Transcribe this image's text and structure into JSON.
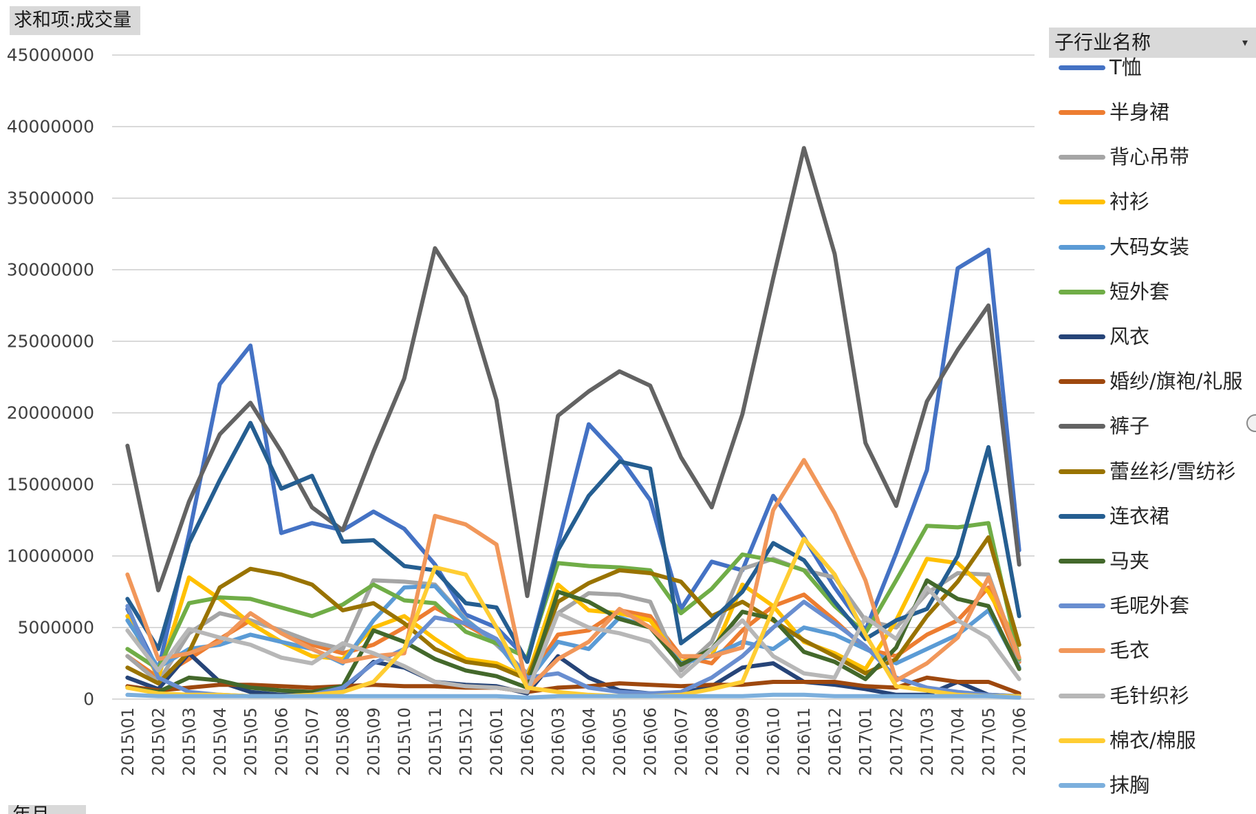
{
  "pivot_fields": {
    "value_field": "求和项:成交量",
    "axis_field": "年月"
  },
  "icons": {
    "legend_dropdown": "chevron-down-icon"
  },
  "chart_data": {
    "type": "line",
    "legend_title": "子行业名称",
    "legend_position": "right",
    "grid": "horizontal",
    "ylim": [
      0,
      45000000
    ],
    "yticks": [
      0,
      5000000,
      10000000,
      15000000,
      20000000,
      25000000,
      30000000,
      35000000,
      40000000,
      45000000
    ],
    "ytick_labels": [
      "0",
      "5000000",
      "10000000",
      "15000000",
      "20000000",
      "25000000",
      "30000000",
      "35000000",
      "40000000",
      "45000000"
    ],
    "categories": [
      "2015\\01",
      "2015\\02",
      "2015\\03",
      "2015\\04",
      "2015\\05",
      "2015\\06",
      "2015\\07",
      "2015\\08",
      "2015\\09",
      "2015\\10",
      "2015\\11",
      "2015\\12",
      "2016\\01",
      "2016\\02",
      "2016\\03",
      "2016\\04",
      "2016\\05",
      "2016\\06",
      "2016\\07",
      "2016\\08",
      "2016\\09",
      "2016\\10",
      "2016\\11",
      "2016\\12",
      "2017\\01",
      "2017\\02",
      "2017\\03",
      "2017\\04",
      "2017\\05",
      "2017\\06"
    ],
    "series": [
      {
        "name": "T恤",
        "color": "#4472C4",
        "values": [
          6300000,
          2000000,
          11500000,
          22000000,
          24700000,
          11600000,
          12300000,
          11800000,
          13100000,
          11900000,
          9400000,
          5900000,
          5000000,
          2800000,
          10800000,
          19200000,
          16900000,
          13900000,
          6300000,
          9600000,
          9000000,
          14200000,
          11300000,
          7800000,
          4800000,
          10200000,
          16000000,
          30100000,
          31400000,
          10400000
        ]
      },
      {
        "name": "半身裙",
        "color": "#ED7D31",
        "values": [
          3000000,
          1500000,
          2800000,
          4200000,
          5500000,
          4800000,
          3800000,
          3200000,
          3800000,
          5000000,
          6400000,
          5200000,
          4000000,
          1200000,
          4500000,
          4800000,
          6200000,
          5800000,
          3000000,
          2500000,
          4800000,
          6500000,
          7300000,
          5500000,
          3500000,
          3000000,
          4500000,
          5500000,
          7800000,
          2600000
        ]
      },
      {
        "name": "背心吊带",
        "color": "#A5A5A5",
        "values": [
          3000000,
          1200000,
          4600000,
          6000000,
          5500000,
          4800000,
          4000000,
          3500000,
          8300000,
          8200000,
          8000000,
          5600000,
          3800000,
          1800000,
          6000000,
          7400000,
          7300000,
          6800000,
          2000000,
          4000000,
          9100000,
          9800000,
          9000000,
          8500000,
          5500000,
          5000000,
          7400000,
          8800000,
          8700000,
          2700000
        ]
      },
      {
        "name": "衬衫",
        "color": "#FFC000",
        "values": [
          5800000,
          1500000,
          8500000,
          7000000,
          5300000,
          4000000,
          3000000,
          2800000,
          5000000,
          5800000,
          4200000,
          2800000,
          2500000,
          1500000,
          8000000,
          6200000,
          6000000,
          5500000,
          2600000,
          3000000,
          8000000,
          6500000,
          4000000,
          3200000,
          2100000,
          5500000,
          9800000,
          9500000,
          7500000,
          3800000
        ]
      },
      {
        "name": "大码女装",
        "color": "#5B9BD5",
        "values": [
          5500000,
          2200000,
          3500000,
          3800000,
          4500000,
          4000000,
          3500000,
          2500000,
          5500000,
          7800000,
          7900000,
          5500000,
          4000000,
          1200000,
          4000000,
          3500000,
          5700000,
          5000000,
          2500000,
          3000000,
          4000000,
          3500000,
          5000000,
          4500000,
          3500000,
          2500000,
          3500000,
          4500000,
          6200000,
          2200000
        ]
      },
      {
        "name": "短外套",
        "color": "#70AD47",
        "values": [
          3500000,
          2100000,
          6700000,
          7100000,
          7000000,
          6400000,
          5800000,
          6600000,
          8000000,
          6900000,
          6700000,
          4700000,
          3900000,
          2900000,
          9500000,
          9300000,
          9200000,
          9000000,
          6000000,
          7700000,
          10100000,
          9700000,
          9000000,
          6500000,
          4600000,
          8300000,
          12100000,
          12000000,
          12300000,
          2800000
        ]
      },
      {
        "name": "风衣",
        "color": "#264478",
        "values": [
          1500000,
          700000,
          3200000,
          1200000,
          500000,
          300000,
          300000,
          600000,
          2600000,
          2200000,
          1200000,
          1000000,
          900000,
          400000,
          3000000,
          1500000,
          600000,
          400000,
          400000,
          900000,
          2200000,
          2500000,
          1200000,
          1000000,
          700000,
          300000,
          300000,
          1200000,
          300000,
          200000
        ]
      },
      {
        "name": "婚纱/旗袍/礼服",
        "color": "#9E480E",
        "values": [
          900000,
          600000,
          800000,
          1000000,
          1000000,
          900000,
          800000,
          900000,
          1000000,
          900000,
          900000,
          800000,
          800000,
          500000,
          800000,
          900000,
          1100000,
          1000000,
          900000,
          1000000,
          1000000,
          1200000,
          1200000,
          1200000,
          900000,
          800000,
          1500000,
          1200000,
          1200000,
          400000
        ]
      },
      {
        "name": "裤子",
        "color": "#636363",
        "values": [
          17700000,
          7600000,
          13800000,
          18500000,
          20700000,
          17300000,
          13400000,
          11800000,
          17300000,
          22400000,
          31500000,
          28100000,
          20900000,
          7200000,
          19800000,
          21500000,
          22900000,
          21900000,
          16900000,
          13400000,
          19900000,
          29400000,
          38500000,
          31100000,
          17900000,
          13500000,
          20800000,
          24400000,
          27500000,
          9400000
        ]
      },
      {
        "name": "蕾丝衫/雪纺衫",
        "color": "#997300",
        "values": [
          2200000,
          1100000,
          3300000,
          7800000,
          9100000,
          8700000,
          8000000,
          6200000,
          6700000,
          5300000,
          3500000,
          2600000,
          2300000,
          1400000,
          6800000,
          8100000,
          9000000,
          8800000,
          8200000,
          5800000,
          6800000,
          5500000,
          4100000,
          3000000,
          1800000,
          2800000,
          5800000,
          8200000,
          11300000,
          3800000
        ]
      },
      {
        "name": "连衣裙",
        "color": "#255E91",
        "values": [
          7000000,
          3500000,
          10900000,
          15300000,
          19300000,
          14700000,
          15600000,
          11000000,
          11100000,
          9300000,
          9000000,
          6700000,
          6400000,
          2600000,
          10400000,
          14200000,
          16600000,
          16100000,
          3900000,
          5500000,
          7500000,
          10900000,
          9700000,
          6800000,
          4200000,
          5500000,
          6300000,
          10000000,
          17600000,
          5800000
        ]
      },
      {
        "name": "马夹",
        "color": "#43682B",
        "values": [
          800000,
          500000,
          1500000,
          1300000,
          800000,
          600000,
          500000,
          900000,
          4800000,
          4000000,
          2800000,
          2000000,
          1600000,
          800000,
          7500000,
          6800000,
          5600000,
          5000000,
          2400000,
          3500000,
          6100000,
          5600000,
          3300000,
          2600000,
          1400000,
          3600000,
          8300000,
          7000000,
          6500000,
          2100000
        ]
      },
      {
        "name": "毛呢外套",
        "color": "#698ED0",
        "values": [
          6500000,
          1500000,
          500000,
          300000,
          200000,
          200000,
          300000,
          800000,
          2500000,
          3500000,
          5700000,
          5300000,
          4200000,
          1500000,
          1800000,
          800000,
          500000,
          400000,
          500000,
          1500000,
          3000000,
          5000000,
          6800000,
          5300000,
          3700000,
          1500000,
          800000,
          500000,
          300000,
          200000
        ]
      },
      {
        "name": "毛衣",
        "color": "#F1975A",
        "values": [
          8700000,
          2800000,
          3200000,
          4000000,
          6000000,
          4600000,
          3500000,
          2600000,
          3000000,
          3200000,
          12800000,
          12200000,
          10800000,
          700000,
          2800000,
          4000000,
          6300000,
          5000000,
          3000000,
          3000000,
          3600000,
          13200000,
          16700000,
          13000000,
          8300000,
          1300000,
          2500000,
          4300000,
          8500000,
          2900000
        ]
      },
      {
        "name": "毛针织衫",
        "color": "#B7B7B7",
        "values": [
          4800000,
          2000000,
          4900000,
          4300000,
          3800000,
          2900000,
          2500000,
          3900000,
          3200000,
          2300000,
          1200000,
          900000,
          800000,
          500000,
          6000000,
          5000000,
          4600000,
          4000000,
          1600000,
          3500000,
          5500000,
          3000000,
          1800000,
          1500000,
          5700000,
          4200000,
          7800000,
          5500000,
          4300000,
          1400000
        ]
      },
      {
        "name": "棉衣/棉服",
        "color": "#FFCD33",
        "values": [
          800000,
          400000,
          300000,
          300000,
          200000,
          200000,
          300000,
          500000,
          1200000,
          3500000,
          9200000,
          8700000,
          5000000,
          800000,
          500000,
          300000,
          200000,
          200000,
          300000,
          700000,
          1200000,
          6300000,
          11200000,
          8700000,
          4500000,
          900000,
          600000,
          300000,
          200000,
          200000
        ]
      },
      {
        "name": "抹胸",
        "color": "#7CAFDD",
        "values": [
          300000,
          200000,
          200000,
          200000,
          200000,
          200000,
          200000,
          200000,
          200000,
          200000,
          200000,
          200000,
          200000,
          100000,
          200000,
          200000,
          200000,
          200000,
          200000,
          200000,
          200000,
          300000,
          300000,
          200000,
          200000,
          200000,
          200000,
          200000,
          200000,
          100000
        ]
      }
    ]
  }
}
